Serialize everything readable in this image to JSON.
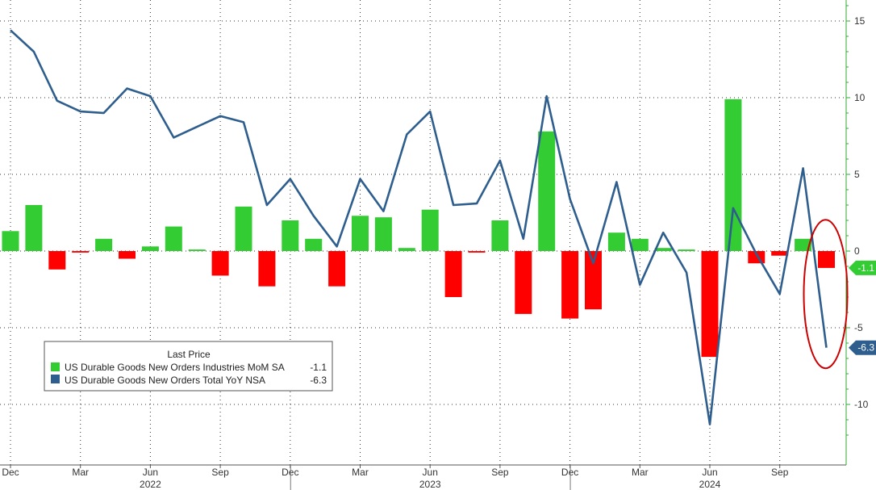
{
  "chart_data": {
    "type": "bar+line",
    "title": "",
    "xlabel": "",
    "ylabel": "",
    "ylim": [
      -13,
      16
    ],
    "yticks": [
      15,
      10,
      5,
      0,
      -5,
      -10
    ],
    "grid": true,
    "x": [
      "2021-12",
      "2022-01",
      "2022-02",
      "2022-03",
      "2022-04",
      "2022-05",
      "2022-06",
      "2022-07",
      "2022-08",
      "2022-09",
      "2022-10",
      "2022-11",
      "2022-12",
      "2023-01",
      "2023-02",
      "2023-03",
      "2023-04",
      "2023-05",
      "2023-06",
      "2023-07",
      "2023-08",
      "2023-09",
      "2023-10",
      "2023-11",
      "2023-12",
      "2024-01",
      "2024-02",
      "2024-03",
      "2024-04",
      "2024-05",
      "2024-06",
      "2024-07",
      "2024-08",
      "2024-09",
      "2024-10",
      "2024-11"
    ],
    "x_tick_labels": [
      {
        "x": "2021-12",
        "label": "Dec"
      },
      {
        "x": "2022-03",
        "label": "Mar"
      },
      {
        "x": "2022-06",
        "label": "Jun"
      },
      {
        "x": "2022-09",
        "label": "Sep"
      },
      {
        "x": "2022-12",
        "label": "Dec"
      },
      {
        "x": "2023-03",
        "label": "Mar"
      },
      {
        "x": "2023-06",
        "label": "Jun"
      },
      {
        "x": "2023-09",
        "label": "Sep"
      },
      {
        "x": "2023-12",
        "label": "Dec"
      },
      {
        "x": "2024-03",
        "label": "Mar"
      },
      {
        "x": "2024-06",
        "label": "Jun"
      },
      {
        "x": "2024-09",
        "label": "Sep"
      }
    ],
    "year_labels": [
      {
        "x": "2022-06",
        "label": "2022"
      },
      {
        "x": "2023-06",
        "label": "2023"
      },
      {
        "x": "2024-06",
        "label": "2024"
      }
    ],
    "series": [
      {
        "name": "US Durable Goods New Orders Industries MoM SA",
        "type": "bar",
        "color_pos": "#33cc33",
        "color_neg": "#ff0000",
        "last": "-1.1",
        "values": [
          1.3,
          3.0,
          -1.2,
          -0.1,
          0.8,
          -0.5,
          0.3,
          1.6,
          0.1,
          -1.6,
          2.9,
          -2.3,
          2.0,
          0.8,
          -2.3,
          2.3,
          2.2,
          0.2,
          2.7,
          -3.0,
          -0.1,
          2.0,
          -4.1,
          7.8,
          -4.4,
          -3.8,
          1.2,
          0.8,
          0.2,
          0.1,
          -6.9,
          9.9,
          -0.8,
          -0.3,
          0.8,
          -1.1
        ]
      },
      {
        "name": "US Durable Goods New Orders Total YoY NSA",
        "type": "line",
        "color": "#2e5e8e",
        "last": "-6.3",
        "values": [
          14.4,
          13.0,
          9.8,
          9.1,
          9.0,
          10.6,
          10.1,
          7.4,
          8.1,
          8.8,
          8.4,
          3.0,
          4.7,
          2.3,
          0.3,
          4.7,
          2.6,
          7.6,
          9.1,
          3.0,
          3.1,
          5.9,
          0.8,
          10.1,
          3.4,
          -0.8,
          4.5,
          -2.2,
          1.2,
          -1.4,
          -11.3,
          2.8,
          -0.2,
          -2.8,
          5.4,
          -6.3
        ]
      }
    ],
    "legend": {
      "title": "Last Price",
      "placement": "bottom-left"
    },
    "annotations": [
      {
        "type": "ellipse",
        "color": "#cc0000",
        "around": "2024-11"
      }
    ]
  }
}
